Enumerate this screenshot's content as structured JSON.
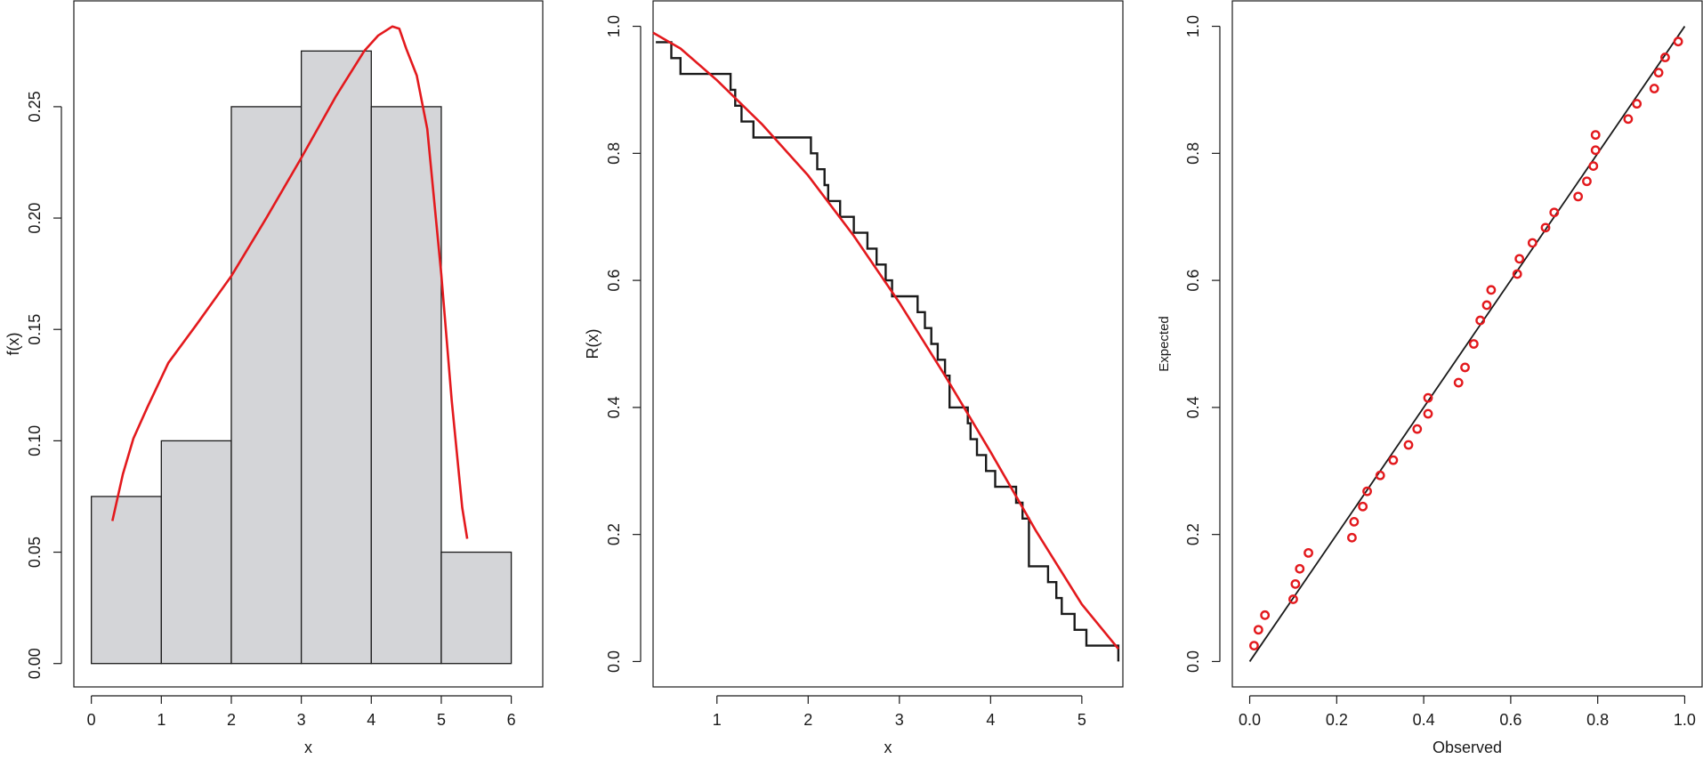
{
  "chart_data": [
    {
      "type": "bar",
      "subtype": "histogram-with-density",
      "title": "",
      "xlabel": "x",
      "ylabel": "f(x)",
      "xlim": [
        0,
        6
      ],
      "ylim": [
        0,
        0.25
      ],
      "x_ticks": [
        "0",
        "1",
        "2",
        "3",
        "4",
        "5",
        "6"
      ],
      "y_ticks": [
        "0.00",
        "0.05",
        "0.10",
        "0.15",
        "0.20",
        "0.25"
      ],
      "bins": [
        [
          0,
          1
        ],
        [
          1,
          2
        ],
        [
          2,
          3
        ],
        [
          3,
          4
        ],
        [
          4,
          5
        ],
        [
          5,
          6
        ]
      ],
      "values": [
        0.075,
        0.1,
        0.25,
        0.275,
        0.25,
        0.05
      ],
      "bar_fill": "#d4d5d8",
      "density_curve": {
        "color": "#e3191d",
        "points": [
          [
            0.3,
            0.064
          ],
          [
            0.45,
            0.085
          ],
          [
            0.6,
            0.101
          ],
          [
            0.8,
            0.115
          ],
          [
            1.1,
            0.135
          ],
          [
            1.5,
            0.152
          ],
          [
            2.0,
            0.174
          ],
          [
            2.5,
            0.2
          ],
          [
            3.0,
            0.227
          ],
          [
            3.5,
            0.255
          ],
          [
            3.9,
            0.275
          ],
          [
            4.1,
            0.282
          ],
          [
            4.3,
            0.286
          ],
          [
            4.4,
            0.285
          ],
          [
            4.5,
            0.276
          ],
          [
            4.65,
            0.264
          ],
          [
            4.8,
            0.24
          ],
          [
            5.0,
            0.175
          ],
          [
            5.15,
            0.118
          ],
          [
            5.3,
            0.07
          ],
          [
            5.37,
            0.056
          ]
        ]
      }
    },
    {
      "type": "line",
      "subtype": "empirical-vs-fitted-reliability",
      "title": "",
      "xlabel": "x",
      "ylabel": "R(x)",
      "xlim": [
        0.3,
        5.45
      ],
      "ylim": [
        0,
        1
      ],
      "x_ticks": [
        "1",
        "2",
        "3",
        "4",
        "5"
      ],
      "y_ticks": [
        "0.0",
        "0.2",
        "0.4",
        "0.6",
        "0.8",
        "1.0"
      ],
      "series": [
        {
          "style": "step",
          "color": "#1a1a1a",
          "x": [
            0.33,
            0.5,
            0.6,
            1.15,
            1.2,
            1.27,
            1.4,
            2.03,
            2.1,
            2.18,
            2.22,
            2.35,
            2.5,
            2.65,
            2.75,
            2.85,
            2.92,
            3.2,
            3.28,
            3.35,
            3.42,
            3.5,
            3.55,
            3.75,
            3.78,
            3.85,
            3.95,
            4.05,
            4.28,
            4.35,
            4.42,
            4.63,
            4.72,
            4.78,
            4.92,
            4.98,
            5.05,
            5.4
          ],
          "values": [
            0.975,
            0.95,
            0.925,
            0.9,
            0.875,
            0.85,
            0.825,
            0.8,
            0.775,
            0.75,
            0.725,
            0.7,
            0.675,
            0.65,
            0.625,
            0.6,
            0.575,
            0.55,
            0.525,
            0.5,
            0.475,
            0.45,
            0.4,
            0.375,
            0.35,
            0.325,
            0.3,
            0.275,
            0.25,
            0.225,
            0.15,
            0.125,
            0.1,
            0.075,
            0.05,
            0.05,
            0.025,
            0.0
          ]
        },
        {
          "style": "line",
          "color": "#e3191d",
          "x": [
            0.3,
            0.6,
            1.0,
            1.5,
            2.0,
            2.5,
            3.0,
            3.5,
            4.0,
            4.5,
            5.0,
            5.4
          ],
          "values": [
            0.99,
            0.965,
            0.915,
            0.845,
            0.765,
            0.67,
            0.565,
            0.45,
            0.33,
            0.205,
            0.09,
            0.02
          ]
        }
      ]
    },
    {
      "type": "scatter",
      "subtype": "pp-plot",
      "title": "",
      "xlabel": "Observed",
      "ylabel": "Expected",
      "xlim": [
        0,
        1
      ],
      "ylim": [
        0,
        1
      ],
      "x_ticks": [
        "0.0",
        "0.2",
        "0.4",
        "0.6",
        "0.8",
        "1.0"
      ],
      "y_ticks": [
        "0.0",
        "0.2",
        "0.4",
        "0.6",
        "0.8",
        "1.0"
      ],
      "reference_line": {
        "from": [
          0,
          0
        ],
        "to": [
          1,
          1
        ],
        "color": "#1a1a1a"
      },
      "point_color": "#e3191d",
      "x": [
        0.01,
        0.02,
        0.035,
        0.1,
        0.105,
        0.115,
        0.135,
        0.235,
        0.24,
        0.26,
        0.27,
        0.3,
        0.33,
        0.365,
        0.385,
        0.41,
        0.41,
        0.48,
        0.495,
        0.515,
        0.53,
        0.545,
        0.555,
        0.615,
        0.62,
        0.65,
        0.68,
        0.7,
        0.755,
        0.775,
        0.79,
        0.795,
        0.795,
        0.87,
        0.89,
        0.93,
        0.94,
        0.955,
        0.985
      ],
      "y": [
        0.025,
        0.05,
        0.073,
        0.098,
        0.122,
        0.146,
        0.171,
        0.195,
        0.22,
        0.244,
        0.268,
        0.293,
        0.317,
        0.341,
        0.366,
        0.39,
        0.415,
        0.439,
        0.463,
        0.5,
        0.537,
        0.561,
        0.585,
        0.61,
        0.634,
        0.659,
        0.683,
        0.707,
        0.732,
        0.756,
        0.78,
        0.805,
        0.829,
        0.854,
        0.878,
        0.902,
        0.927,
        0.951,
        0.976
      ]
    }
  ]
}
